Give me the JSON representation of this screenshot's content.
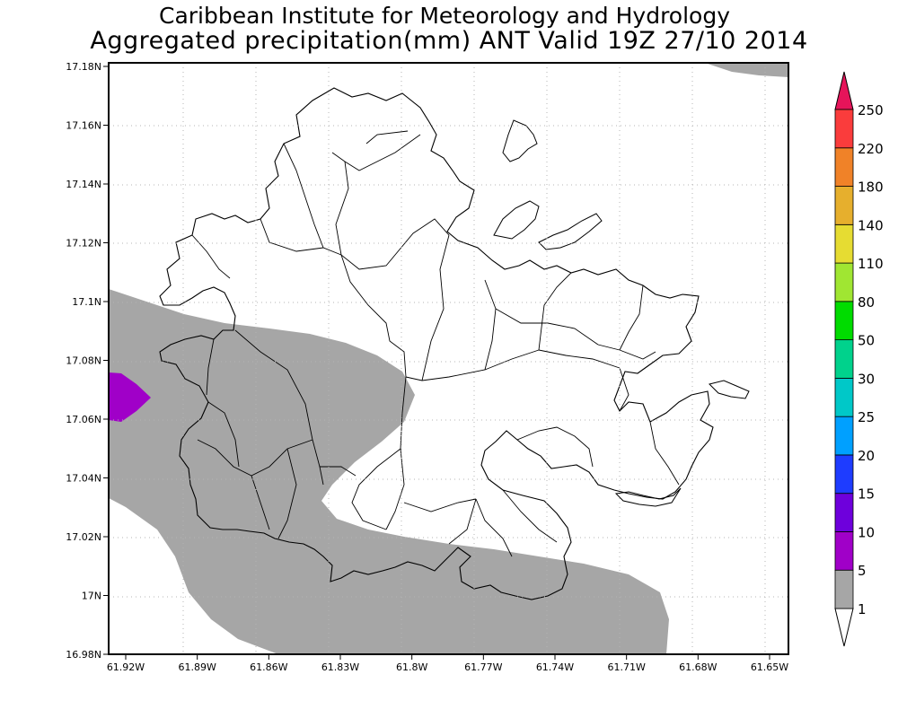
{
  "title": {
    "line1": "Caribbean Institute for Meteorology and Hydrology",
    "line2": "Aggregated precipitation(mm) ANT Valid 19Z 27/10 2014"
  },
  "axes": {
    "y_ticks": [
      "17.18N",
      "17.16N",
      "17.14N",
      "17.12N",
      "17.1N",
      "17.08N",
      "17.06N",
      "17.04N",
      "17.02N",
      "17N",
      "16.98N"
    ],
    "x_ticks": [
      "61.92W",
      "61.89W",
      "61.86W",
      "61.83W",
      "61.8W",
      "61.77W",
      "61.74W",
      "61.71W",
      "61.68W",
      "61.65W"
    ]
  },
  "colorbar": {
    "levels": [
      "1",
      "5",
      "10",
      "15",
      "20",
      "25",
      "30",
      "50",
      "80",
      "110",
      "140",
      "180",
      "220",
      "250"
    ],
    "colors": [
      "#ffffff",
      "#a6a6a6",
      "#a000c8",
      "#6e00dc",
      "#1e3cff",
      "#00a0ff",
      "#00c8c8",
      "#00d28c",
      "#00dc00",
      "#a0e632",
      "#e6dc32",
      "#e6af2d",
      "#f08228",
      "#fa3c3c",
      "#e6145a"
    ]
  },
  "colors": {
    "precip_1_5": "#a6a6a6",
    "precip_5_10": "#a000c8",
    "land_outline": "#000000",
    "gridlines": "#b4b4b4"
  }
}
